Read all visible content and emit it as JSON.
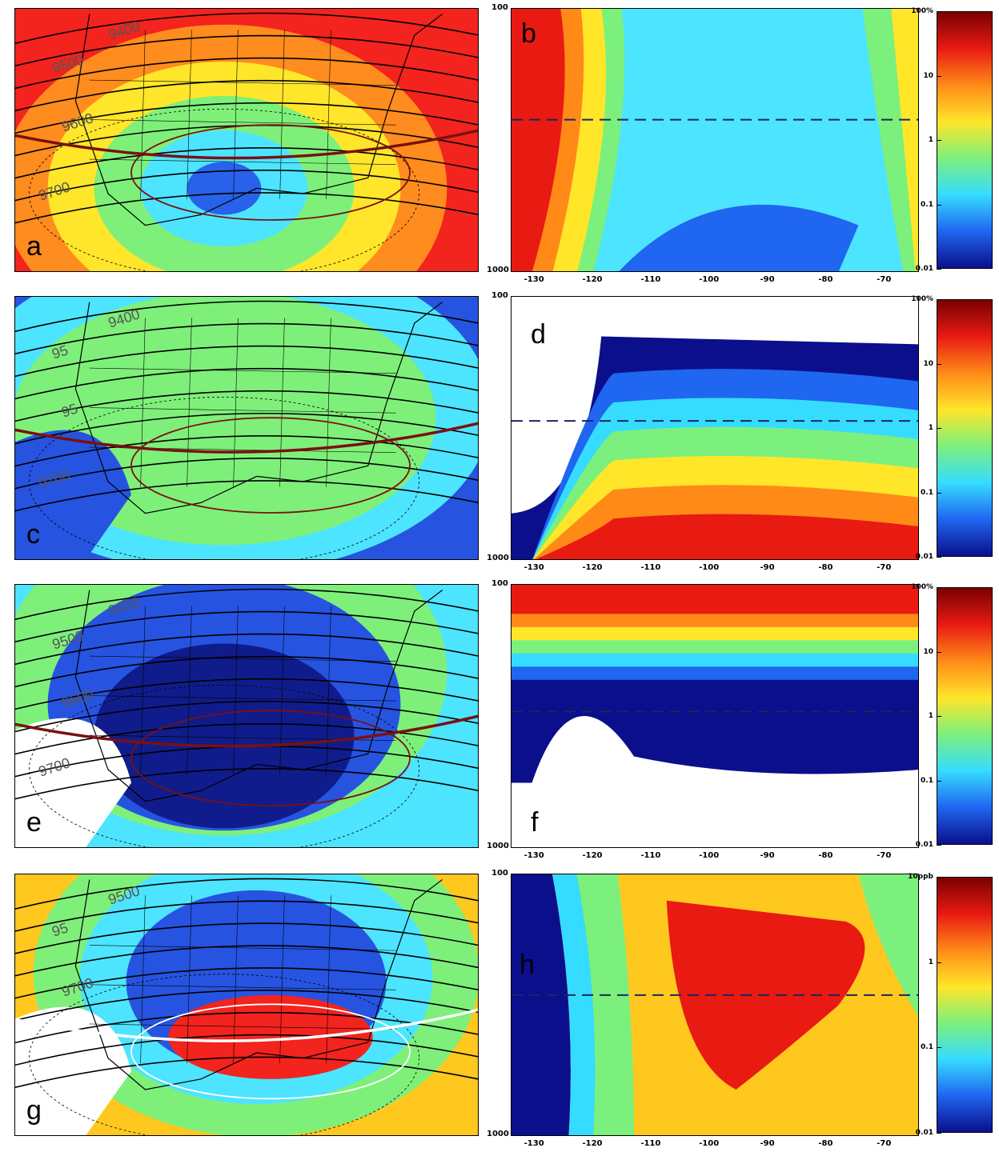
{
  "panels": [
    {
      "map_label": "a",
      "cross_label": "b",
      "map_bg": "#f3231e",
      "map_bands": [
        "#ff8c1e",
        "#ffe62a",
        "#7ef07a",
        "#4de4ff",
        "#2862ea"
      ],
      "cross_bg": "#4de4ff",
      "contour_labels": [
        "9400",
        "9500",
        "9600",
        "9700"
      ],
      "colorbar_top": "100%",
      "colorbar_ticks": [
        "100%",
        "10",
        "1",
        "0.1",
        "0.01"
      ],
      "colorbar_colors": [
        "#7a0000",
        "#e81a12",
        "#ff8a18",
        "#ffe629",
        "#7cf07c",
        "#35dcff",
        "#1f66f0",
        "#0b0f8c"
      ]
    },
    {
      "map_label": "c",
      "cross_label": "d",
      "map_bg": "#2654e0",
      "map_bands": [
        "#4de4ff",
        "#7ef07a"
      ],
      "cross_bg": "#ffffff",
      "contour_labels": [
        "9400",
        "95",
        "95",
        "9700"
      ],
      "colorbar_top": "100%",
      "colorbar_ticks": [
        "100%",
        "10",
        "1",
        "0.1",
        "0.01"
      ],
      "colorbar_colors": [
        "#7a0000",
        "#e81a12",
        "#ff8a18",
        "#ffe629",
        "#7cf07c",
        "#35dcff",
        "#1f66f0",
        "#0b0f8c"
      ]
    },
    {
      "map_label": "e",
      "cross_label": "f",
      "map_bg": "#4de4ff",
      "map_bands": [
        "#7ef07a",
        "#2654e0",
        "#101c8c"
      ],
      "cross_bg": "#ffffff",
      "contour_labels": [
        "9400",
        "9500",
        "9600",
        "9700"
      ],
      "colorbar_top": "100%",
      "colorbar_ticks": [
        "100%",
        "10",
        "1",
        "0.1",
        "0.01"
      ],
      "colorbar_colors": [
        "#7a0000",
        "#e81a12",
        "#ff8a18",
        "#ffe629",
        "#7cf07c",
        "#35dcff",
        "#1f66f0",
        "#0b0f8c"
      ]
    },
    {
      "map_label": "g",
      "cross_label": "h",
      "map_bg": "#ffc81e",
      "map_bands": [
        "#7ef07a",
        "#4de4ff",
        "#2654e0"
      ],
      "cross_bg": "#ffc81e",
      "contour_labels": [
        "9500",
        "95",
        "9700"
      ],
      "colorbar_top": "10ppb",
      "colorbar_ticks": [
        "10ppb",
        "1",
        "0.1",
        "0.01"
      ],
      "colorbar_colors": [
        "#7a0000",
        "#e81a12",
        "#ff8a18",
        "#ffe629",
        "#7cf07c",
        "#35dcff",
        "#1f66f0",
        "#0b0f8c"
      ]
    }
  ],
  "pressure_axis": {
    "top": "100",
    "bottom": "1000"
  },
  "longitude_ticks": [
    "-130",
    "-120",
    "-110",
    "-100",
    "-90",
    "-80",
    "-70"
  ],
  "colors": {
    "contour": "#000000",
    "jet_axis_red": "#7a1010",
    "jet_axis_white": "#ffffff",
    "tropopause_dash": "#1a2660"
  }
}
